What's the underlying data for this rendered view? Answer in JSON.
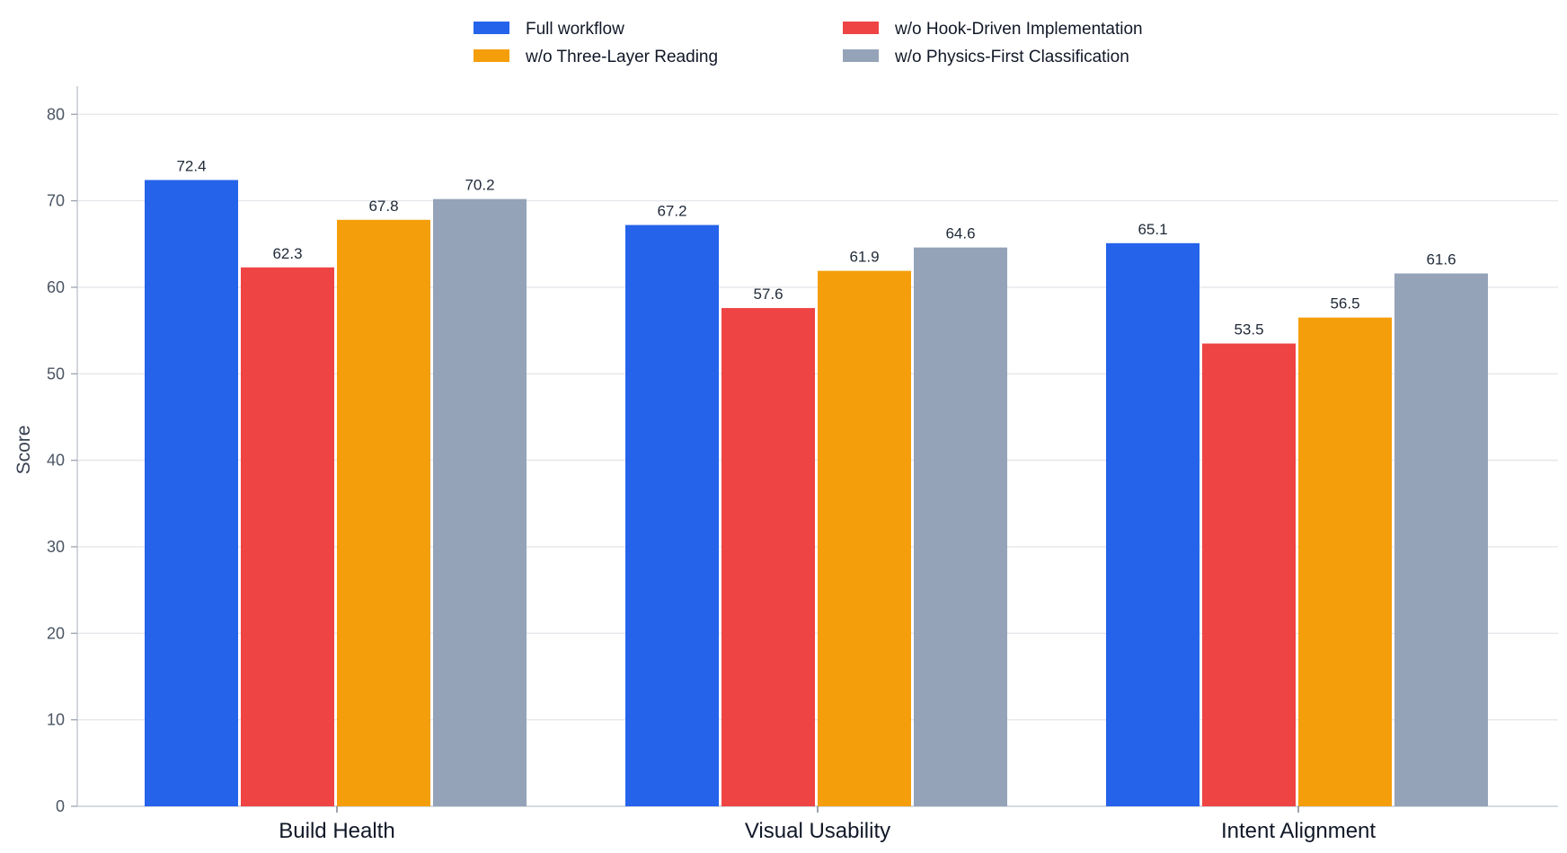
{
  "chart_data": {
    "type": "bar",
    "categories": [
      "Build Health",
      "Visual Usability",
      "Intent Alignment"
    ],
    "series": [
      {
        "name": "Full workflow",
        "color": "#2563eb",
        "values": [
          72.4,
          67.2,
          65.1
        ]
      },
      {
        "name": "w/o Hook-Driven Implementation",
        "color": "#ef4444",
        "values": [
          62.3,
          57.6,
          53.5
        ]
      },
      {
        "name": "w/o Three-Layer Reading",
        "color": "#f59e0b",
        "values": [
          67.8,
          61.9,
          56.5
        ]
      },
      {
        "name": "w/o Physics-First Classification",
        "color": "#94a3b8",
        "values": [
          70.2,
          64.6,
          61.6
        ]
      }
    ],
    "data_labels": [
      [
        "72.4",
        "62.3",
        "67.8",
        "70.2"
      ],
      [
        "67.2",
        "57.6",
        "61.9",
        "64.6"
      ],
      [
        "65.1",
        "53.5",
        "56.5",
        "61.6"
      ]
    ],
    "yticks": [
      0,
      10,
      20,
      30,
      40,
      50,
      60,
      70,
      80
    ],
    "ylim": [
      0,
      82
    ],
    "title": "",
    "xlabel": "",
    "ylabel": "Score",
    "grid": true,
    "legend_position": "top-center"
  }
}
